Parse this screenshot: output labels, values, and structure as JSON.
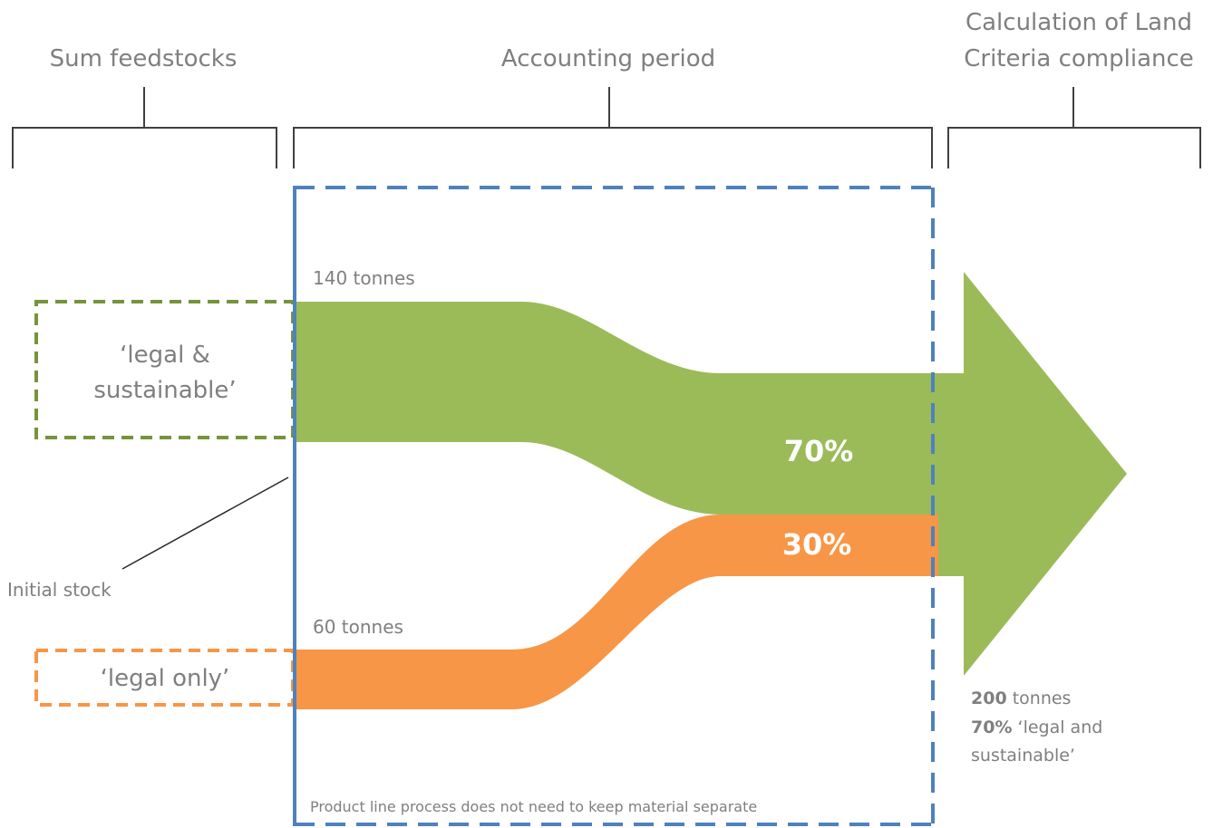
{
  "headers": {
    "sum_feedstocks": "Sum feedstocks",
    "accounting_period": "Accounting period",
    "calculation_line1": "Calculation of  Land",
    "calculation_line2": "Criteria compliance"
  },
  "inputs": {
    "sustainable": {
      "label_line1": "‘legal &",
      "label_line2": "sustainable’",
      "tonnes_label": "140 tonnes",
      "share_label": "70%",
      "color": "#9bbb59"
    },
    "legal_only": {
      "label": "‘legal only’",
      "tonnes_label": "60 tonnes",
      "share_label": "30%",
      "color": "#f79646"
    }
  },
  "initial_stock_label": "Initial  stock",
  "process_note": "Product line process does not need to keep material separate",
  "output": {
    "tonnes_value": "200",
    "tonnes_unit": " tonnes",
    "share_value": "70%",
    "share_text": " ‘legal and",
    "share_text_line2": "sustainable’"
  },
  "colors": {
    "period_border": "#4f81bd",
    "bracket": "#404040",
    "text_gray": "#7f7f7f"
  }
}
